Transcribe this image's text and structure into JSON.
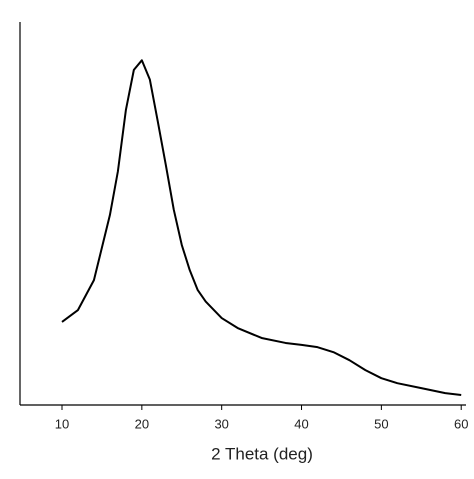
{
  "chart_data": {
    "type": "line",
    "x_label": "2 Theta (deg)",
    "x": [
      10,
      12,
      14,
      16,
      17,
      18,
      19,
      20,
      21,
      22,
      23,
      24,
      25,
      26,
      27,
      28,
      30,
      32,
      35,
      38,
      40,
      42,
      44,
      46,
      48,
      50,
      52,
      55,
      58,
      60
    ],
    "series": [
      {
        "color": "#000000",
        "values": [
          21.7,
          24.8,
          32.6,
          49.6,
          61,
          77,
          87.5,
          90,
          85,
          74,
          62.7,
          51,
          41.8,
          35.2,
          30,
          27,
          22.7,
          20.1,
          17.5,
          16.2,
          15.7,
          15.1,
          13.8,
          11.7,
          9.1,
          7,
          5.7,
          4.4,
          3.1,
          2.6
        ]
      }
    ],
    "xlim": [
      4.74,
      60.6
    ],
    "ylim": [
      0,
      100
    ],
    "xticks": [
      10,
      20,
      30,
      40,
      50,
      60
    ]
  }
}
